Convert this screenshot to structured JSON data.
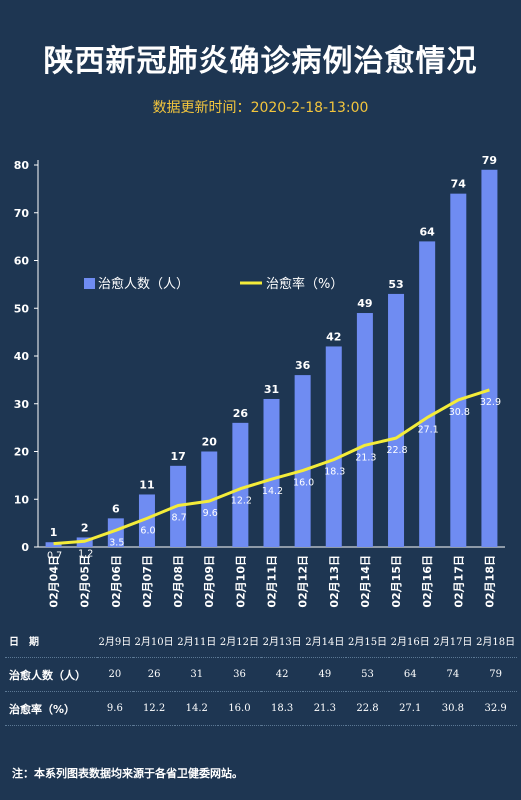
{
  "header": {
    "title": "陕西新冠肺炎确诊病例治愈情况",
    "update_label": "数据更新时间：",
    "update_time": "2020-2-18-13:00"
  },
  "chart_data": {
    "type": "bar",
    "categories": [
      "02月04日",
      "02月05日",
      "02月06日",
      "02月07日",
      "02月08日",
      "02月09日",
      "02月10日",
      "02月11日",
      "02月12日",
      "02月13日",
      "02月14日",
      "02月15日",
      "02月16日",
      "02月17日",
      "02月18日"
    ],
    "series": [
      {
        "name": "治愈人数（人）",
        "type": "bar",
        "color": "#6f8cf2",
        "values": [
          1,
          2,
          6,
          11,
          17,
          20,
          26,
          31,
          36,
          42,
          49,
          53,
          64,
          74,
          79
        ]
      },
      {
        "name": "治愈率（%）",
        "type": "line",
        "color": "#f4ec3a",
        "values": [
          0.7,
          1.2,
          3.5,
          6.0,
          8.7,
          9.6,
          12.2,
          14.2,
          16.0,
          18.3,
          21.3,
          22.8,
          27.1,
          30.8,
          32.9
        ]
      }
    ],
    "yticks": [
      0,
      10,
      20,
      30,
      40,
      50,
      60,
      70,
      80
    ],
    "ylim": [
      0,
      80
    ],
    "legend_position": "top-left",
    "grid": false
  },
  "table": {
    "rows": [
      {
        "header": "日　期",
        "cells": [
          "2月9日",
          "2月10日",
          "2月11日",
          "2月12日",
          "2月13日",
          "2月14日",
          "2月15日",
          "2月16日",
          "2月17日",
          "2月18日"
        ]
      },
      {
        "header": "治愈人数（人）",
        "cells": [
          "20",
          "26",
          "31",
          "36",
          "42",
          "49",
          "53",
          "64",
          "74",
          "79"
        ]
      },
      {
        "header": "治愈率（%）",
        "cells": [
          "9.6",
          "12.2",
          "14.2",
          "16.0",
          "18.3",
          "21.3",
          "22.8",
          "27.1",
          "30.8",
          "32.9"
        ]
      }
    ]
  },
  "note": "注：本系列图表数据均来源于各省卫健委网站。",
  "colors": {
    "background": "#1e3652",
    "bar": "#6f8cf2",
    "line": "#f4ec3a",
    "subtitle": "#f2c53d"
  }
}
